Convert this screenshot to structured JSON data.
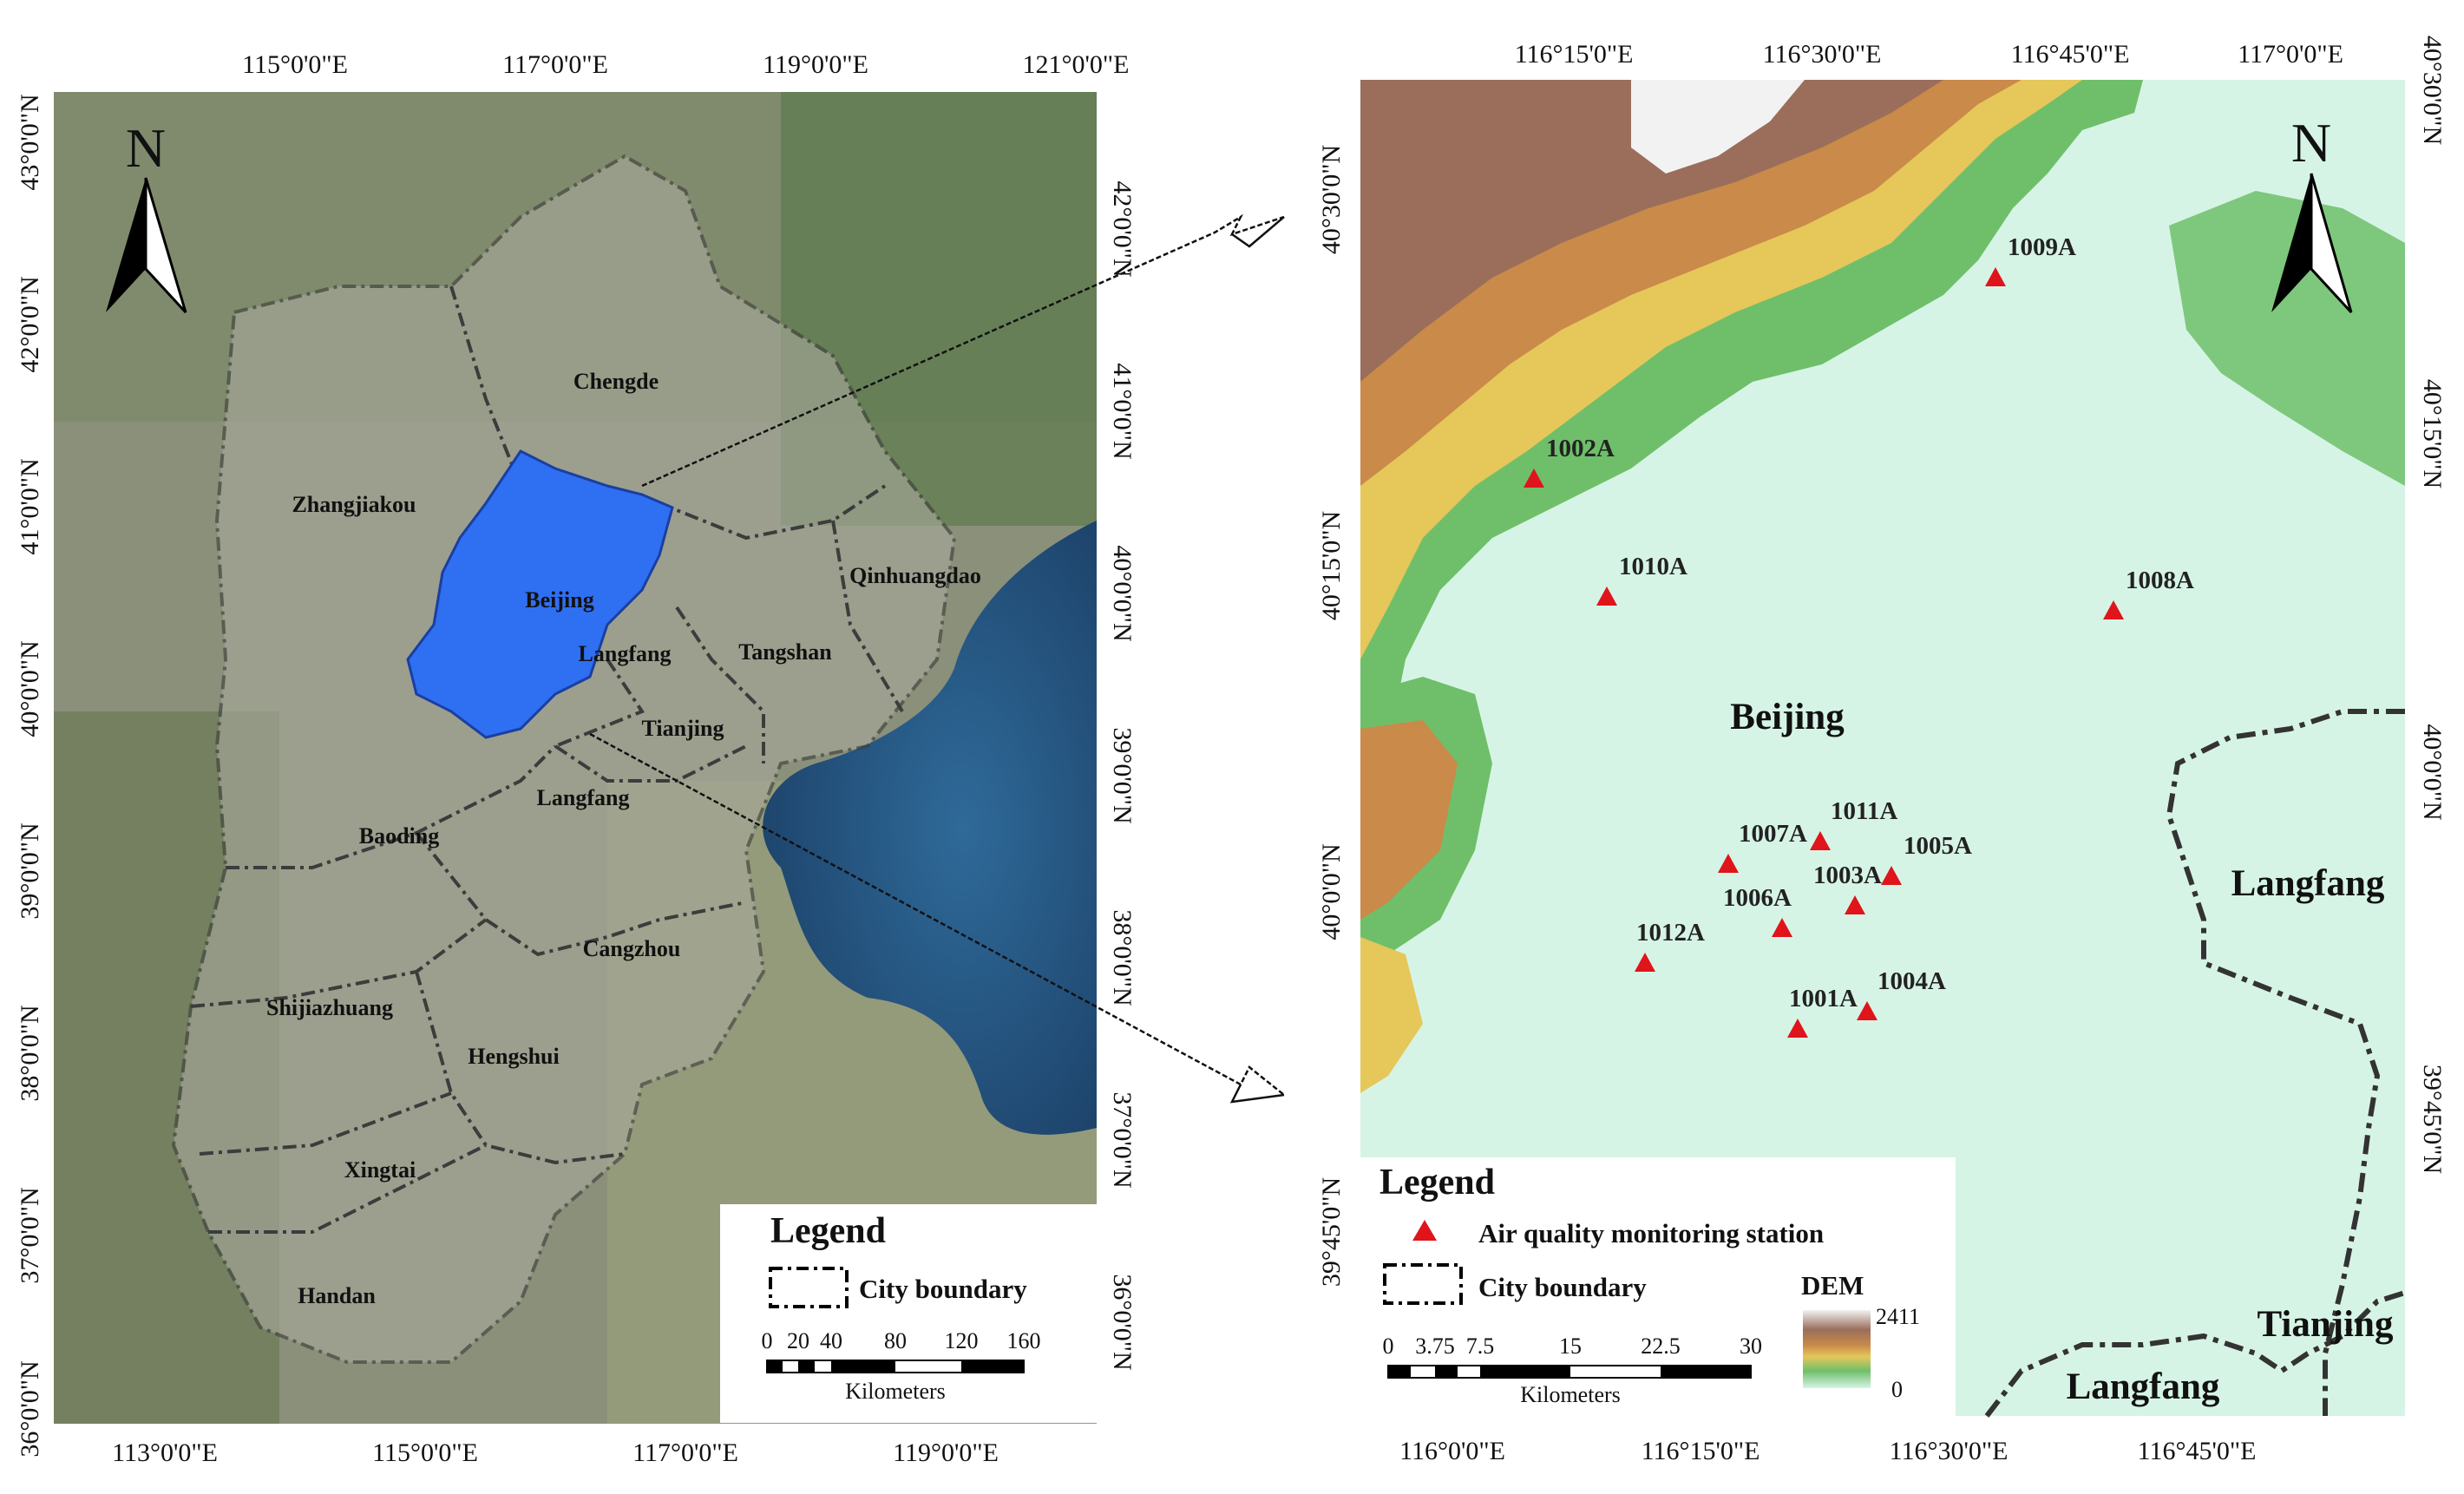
{
  "left_map": {
    "top_ticks": [
      "115°0'0\"E",
      "117°0'0\"E",
      "119°0'0\"E",
      "121°0'0\"E"
    ],
    "bottom_ticks": [
      "113°0'0\"E",
      "115°0'0\"E",
      "117°0'0\"E",
      "119°0'0\"E"
    ],
    "left_ticks": [
      "43°0'0\"N",
      "42°0'0\"N",
      "41°0'0\"N",
      "40°0'0\"N",
      "39°0'0\"N",
      "38°0'0\"N",
      "37°0'0\"N",
      "36°0'0\"N"
    ],
    "right_ticks": [
      "42°0'0\"N",
      "41°0'0\"N",
      "40°0'0\"N",
      "39°0'0\"N",
      "38°0'0\"N",
      "37°0'0\"N",
      "36°0'0\"N"
    ],
    "north_label": "N",
    "cities": [
      "Chengde",
      "Zhangjiakou",
      "Beijing",
      "Qinhuangdao",
      "Langfang",
      "Tangshan",
      "Tianjing",
      "Langfang",
      "Baoding",
      "Cangzhou",
      "Shijiazhuang",
      "Hengshui",
      "Xingtai",
      "Handan"
    ],
    "legend": {
      "title": "Legend",
      "boundary_label": "City boundary",
      "scale_numbers": [
        "0",
        "20",
        "40",
        "80",
        "120",
        "160"
      ],
      "scale_unit": "Kilometers"
    },
    "colors": {
      "beijing": "#2f6ff2",
      "boundary": "#3c3c3c",
      "sea": "#23507e",
      "land": "#8a8f7a"
    }
  },
  "right_map": {
    "top_ticks": [
      "116°15'0\"E",
      "116°30'0\"E",
      "116°45'0\"E",
      "117°0'0\"E"
    ],
    "bottom_ticks": [
      "116°0'0\"E",
      "116°15'0\"E",
      "116°30'0\"E",
      "116°45'0\"E"
    ],
    "left_ticks": [
      "40°30'0\"N",
      "40°15'0\"N",
      "40°0'0\"N",
      "39°45'0\"N"
    ],
    "right_ticks": [
      "40°30'0\"N",
      "40°15'0\"N",
      "40°0'0\"N",
      "39°45'0\"N"
    ],
    "north_label": "N",
    "regions": [
      "Beijing",
      "Langfang",
      "Tianjing",
      "Langfang"
    ],
    "stations": [
      "1009A",
      "1002A",
      "1010A",
      "1008A",
      "1011A",
      "1007A",
      "1005A",
      "1003A",
      "1006A",
      "1012A",
      "1004A",
      "1001A"
    ],
    "legend": {
      "title": "Legend",
      "station_label": "Air quality monitoring station",
      "boundary_label": "City boundary",
      "dem_title": "DEM",
      "dem_max": "2411",
      "dem_min": "0",
      "scale_numbers": [
        "0",
        "3.75",
        "7.5",
        "15",
        "22.5",
        "30"
      ],
      "scale_unit": "Kilometers"
    },
    "colors": {
      "station": "#e0141b",
      "lowland": "#d6f4e6",
      "boundary": "#333333"
    }
  }
}
